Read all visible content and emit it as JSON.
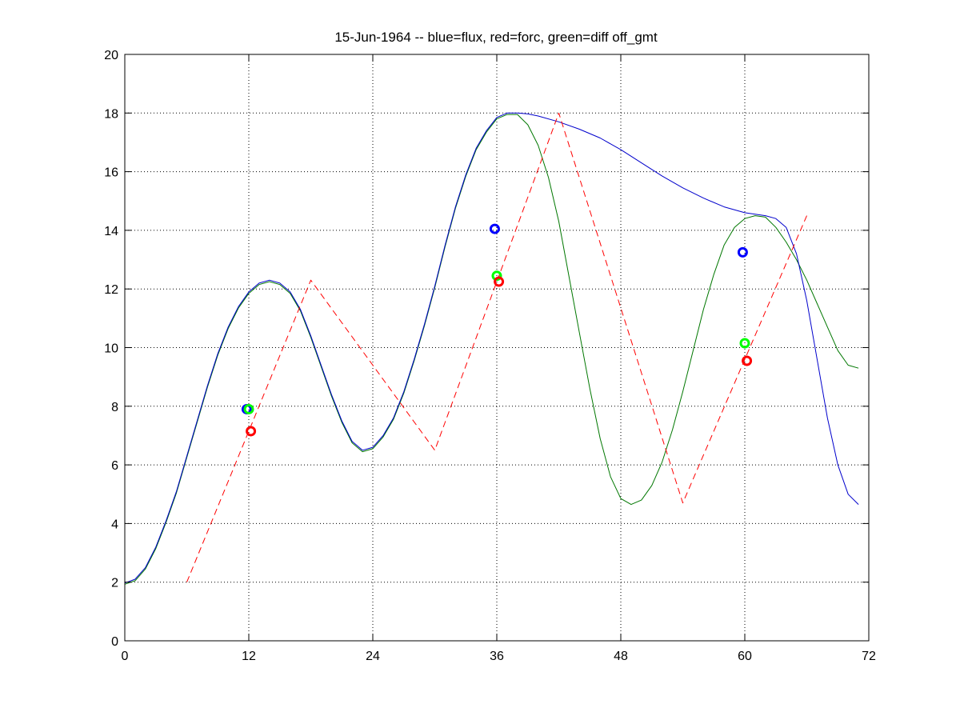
{
  "chart_data": {
    "type": "line",
    "title": "15-Jun-1964 -- blue=flux, red=forc, green=diff off_gmt",
    "xlabel": "",
    "ylabel": "",
    "xlim": [
      0,
      72
    ],
    "ylim": [
      0,
      20
    ],
    "xticks": [
      0,
      12,
      24,
      36,
      48,
      60,
      72
    ],
    "yticks": [
      0,
      2,
      4,
      6,
      8,
      10,
      12,
      14,
      16,
      18,
      20
    ],
    "xtick_labels": [
      "0",
      "12",
      "24",
      "36",
      "48",
      "60",
      "72"
    ],
    "ytick_labels": [
      "0",
      "2",
      "4",
      "6",
      "8",
      "10",
      "12",
      "14",
      "16",
      "18",
      "20"
    ],
    "grid": true,
    "series": [
      {
        "name": "flux",
        "color": "#0000cc",
        "style": "solid",
        "x": [
          0,
          1,
          2,
          3,
          4,
          5,
          6,
          7,
          8,
          9,
          10,
          11,
          12,
          13,
          14,
          15,
          16,
          17,
          18,
          19,
          20,
          21,
          22,
          23,
          24,
          25,
          26,
          27,
          28,
          29,
          30,
          31,
          32,
          33,
          34,
          35,
          36,
          37,
          38,
          39,
          40,
          42,
          44,
          46,
          48,
          50,
          52,
          54,
          56,
          58,
          60,
          61,
          62,
          63,
          64,
          65,
          66,
          67,
          68,
          69,
          70,
          71
        ],
        "y": [
          1.97,
          2.1,
          2.5,
          3.2,
          4.1,
          5.1,
          6.3,
          7.5,
          8.7,
          9.8,
          10.7,
          11.4,
          11.9,
          12.2,
          12.3,
          12.2,
          11.9,
          11.3,
          10.4,
          9.4,
          8.4,
          7.5,
          6.8,
          6.5,
          6.6,
          7.0,
          7.6,
          8.5,
          9.6,
          10.8,
          12.1,
          13.5,
          14.8,
          15.9,
          16.8,
          17.4,
          17.85,
          18.0,
          18.0,
          17.97,
          17.9,
          17.7,
          17.45,
          17.15,
          16.75,
          16.3,
          15.85,
          15.45,
          15.1,
          14.8,
          14.6,
          14.55,
          14.5,
          14.4,
          14.1,
          13.2,
          11.6,
          9.6,
          7.6,
          6.0,
          5.0,
          4.65
        ]
      },
      {
        "name": "forc",
        "color": "#ff0000",
        "style": "dashed",
        "x": [
          6,
          18,
          30,
          42,
          54,
          66
        ],
        "y": [
          2.0,
          12.3,
          6.5,
          18.0,
          4.7,
          14.5
        ]
      },
      {
        "name": "diff",
        "color": "#007700",
        "style": "solid",
        "x": [
          0,
          1,
          2,
          3,
          4,
          5,
          6,
          7,
          8,
          9,
          10,
          11,
          12,
          13,
          14,
          15,
          16,
          17,
          18,
          19,
          20,
          21,
          22,
          23,
          24,
          25,
          26,
          27,
          28,
          29,
          30,
          31,
          32,
          33,
          34,
          35,
          36,
          37,
          38,
          39,
          40,
          41,
          42,
          43,
          44,
          45,
          46,
          47,
          48,
          49,
          50,
          51,
          52,
          53,
          54,
          55,
          56,
          57,
          58,
          59,
          60,
          61,
          62,
          63,
          64,
          65,
          66,
          67,
          68,
          69,
          70,
          71
        ],
        "y": [
          1.93,
          2.05,
          2.45,
          3.15,
          4.05,
          5.05,
          6.25,
          7.45,
          8.65,
          9.75,
          10.65,
          11.35,
          11.85,
          12.15,
          12.25,
          12.15,
          11.85,
          11.25,
          10.35,
          9.35,
          8.35,
          7.45,
          6.75,
          6.45,
          6.55,
          6.95,
          7.55,
          8.45,
          9.55,
          10.75,
          12.05,
          13.45,
          14.75,
          15.85,
          16.75,
          17.35,
          17.8,
          17.95,
          17.95,
          17.6,
          16.9,
          15.8,
          14.3,
          12.4,
          10.5,
          8.6,
          6.9,
          5.6,
          4.85,
          4.65,
          4.8,
          5.3,
          6.1,
          7.2,
          8.5,
          9.9,
          11.3,
          12.5,
          13.5,
          14.1,
          14.4,
          14.5,
          14.45,
          14.1,
          13.6,
          13.0,
          12.3,
          11.5,
          10.7,
          9.9,
          9.4,
          9.3
        ]
      }
    ],
    "markers": [
      {
        "series": "flux",
        "color": "#0000ff",
        "points": [
          [
            11.8,
            7.9
          ],
          [
            35.8,
            14.05
          ],
          [
            59.8,
            13.25
          ]
        ]
      },
      {
        "series": "diff",
        "color": "#00ff00",
        "points": [
          [
            12.0,
            7.9
          ],
          [
            36.0,
            12.45
          ],
          [
            60.0,
            10.15
          ]
        ]
      },
      {
        "series": "forc",
        "color": "#ff0000",
        "points": [
          [
            12.2,
            7.15
          ],
          [
            36.2,
            12.25
          ],
          [
            60.2,
            9.55
          ]
        ]
      }
    ]
  }
}
